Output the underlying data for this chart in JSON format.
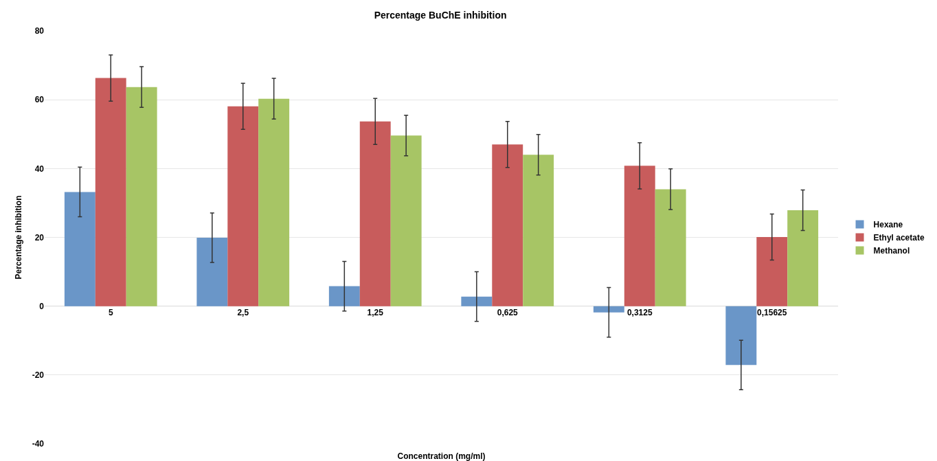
{
  "chart_data": {
    "type": "bar",
    "title": "Percentage BuChE inhibition",
    "xlabel": "Concentration (mg/ml)",
    "ylabel": "Percentage inhibition",
    "categories": [
      "5",
      "2,5",
      "1,25",
      "0,625",
      "0,3125",
      "0,15625"
    ],
    "series": [
      {
        "name": "Hexane",
        "color": "#6a96c8",
        "values": [
          33.2,
          19.9,
          5.8,
          2.8,
          -1.8,
          -17.1
        ],
        "errors": [
          7.2,
          7.2,
          7.2,
          7.2,
          7.2,
          7.2
        ]
      },
      {
        "name": "Ethyl acetate",
        "color": "#c85c5c",
        "values": [
          66.3,
          58.1,
          53.7,
          47,
          40.8,
          20.1
        ],
        "errors": [
          6.7,
          6.7,
          6.7,
          6.7,
          6.7,
          6.7
        ]
      },
      {
        "name": "Methanol",
        "color": "#a7c565",
        "values": [
          63.7,
          60.3,
          49.6,
          44,
          34,
          27.9
        ],
        "errors": [
          5.9,
          5.9,
          5.9,
          5.9,
          5.9,
          5.9
        ]
      }
    ],
    "ylim": [
      -40,
      80
    ],
    "yticks": [
      -40,
      -20,
      0,
      20,
      40,
      60,
      80
    ],
    "grid": "y",
    "legend": "right"
  }
}
